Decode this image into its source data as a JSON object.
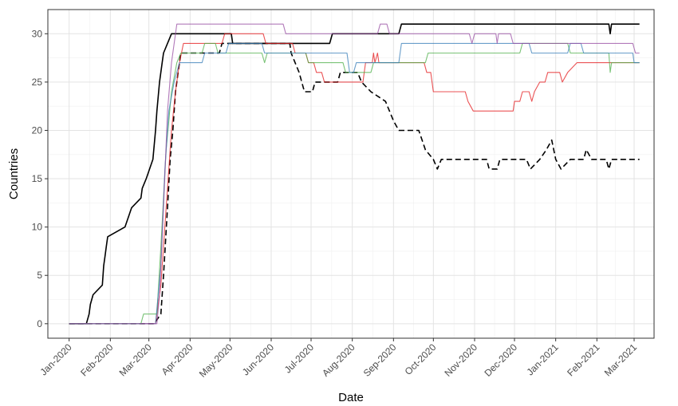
{
  "chart_data": {
    "type": "line",
    "title": "",
    "xlabel": "Date",
    "ylabel": "Countries",
    "x_ticks": [
      "Jan-2020",
      "Feb-2020",
      "Mar-2020",
      "Apr-2020",
      "May-2020",
      "Jun-2020",
      "Jul-2020",
      "Aug-2020",
      "Sep-2020",
      "Oct-2020",
      "Nov-2020",
      "Dec-2020",
      "Jan-2021",
      "Feb-2021",
      "Mar-2021"
    ],
    "xlim": [
      "2019-12-16",
      "2021-03-16"
    ],
    "ylim": [
      -1.5,
      32.5
    ],
    "y_ticks": [
      0,
      5,
      10,
      15,
      20,
      25,
      30
    ],
    "grid": true,
    "legend": "none",
    "series": [
      {
        "color": "#000000",
        "style": "solid",
        "points": [
          [
            "2020-01-01",
            0
          ],
          [
            "2020-01-14",
            0
          ],
          [
            "2020-01-16",
            1
          ],
          [
            "2020-01-17",
            2
          ],
          [
            "2020-01-19",
            3
          ],
          [
            "2020-01-26",
            4
          ],
          [
            "2020-01-27",
            6
          ],
          [
            "2020-01-28",
            7
          ],
          [
            "2020-01-29",
            8
          ],
          [
            "2020-01-30",
            9
          ],
          [
            "2020-02-12",
            10
          ],
          [
            "2020-02-17",
            12
          ],
          [
            "2020-02-24",
            13
          ],
          [
            "2020-02-25",
            14
          ],
          [
            "2020-02-28",
            15
          ],
          [
            "2020-03-04",
            17
          ],
          [
            "2020-03-06",
            20
          ],
          [
            "2020-03-07",
            22
          ],
          [
            "2020-03-09",
            25
          ],
          [
            "2020-03-11",
            27
          ],
          [
            "2020-03-12",
            28
          ],
          [
            "2020-03-15",
            29
          ],
          [
            "2020-03-18",
            30
          ],
          [
            "2020-05-02",
            30
          ],
          [
            "2020-05-03",
            29
          ],
          [
            "2020-07-15",
            29
          ],
          [
            "2020-07-17",
            30
          ],
          [
            "2020-09-05",
            30
          ],
          [
            "2020-09-07",
            31
          ],
          [
            "2021-02-10",
            31
          ],
          [
            "2021-02-11",
            30
          ],
          [
            "2021-02-12",
            31
          ],
          [
            "2021-03-05",
            31
          ]
        ]
      },
      {
        "color": "#000000",
        "style": "dashed",
        "points": [
          [
            "2020-01-01",
            0
          ],
          [
            "2020-03-05",
            0
          ],
          [
            "2020-03-10",
            1
          ],
          [
            "2020-03-12",
            5
          ],
          [
            "2020-03-15",
            12
          ],
          [
            "2020-03-17",
            17
          ],
          [
            "2020-03-19",
            20
          ],
          [
            "2020-03-21",
            24
          ],
          [
            "2020-03-25",
            28
          ],
          [
            "2020-04-23",
            28
          ],
          [
            "2020-04-25",
            29
          ],
          [
            "2020-06-15",
            29
          ],
          [
            "2020-06-16",
            28
          ],
          [
            "2020-06-22",
            26
          ],
          [
            "2020-06-24",
            25
          ],
          [
            "2020-06-26",
            24
          ],
          [
            "2020-07-02",
            24
          ],
          [
            "2020-07-04",
            25
          ],
          [
            "2020-07-21",
            25
          ],
          [
            "2020-07-23",
            26
          ],
          [
            "2020-08-05",
            26
          ],
          [
            "2020-08-08",
            25
          ],
          [
            "2020-08-15",
            24
          ],
          [
            "2020-08-26",
            23
          ],
          [
            "2020-09-01",
            21
          ],
          [
            "2020-09-05",
            20
          ],
          [
            "2020-09-20",
            20
          ],
          [
            "2020-09-25",
            18
          ],
          [
            "2020-10-01",
            17
          ],
          [
            "2020-10-04",
            16
          ],
          [
            "2020-10-07",
            17
          ],
          [
            "2020-11-10",
            17
          ],
          [
            "2020-11-12",
            16
          ],
          [
            "2020-11-18",
            16
          ],
          [
            "2020-11-20",
            17
          ],
          [
            "2020-12-10",
            17
          ],
          [
            "2020-12-13",
            16
          ],
          [
            "2020-12-20",
            17
          ],
          [
            "2020-12-25",
            18
          ],
          [
            "2020-12-29",
            19
          ],
          [
            "2021-01-01",
            17
          ],
          [
            "2021-01-05",
            16
          ],
          [
            "2021-01-12",
            17
          ],
          [
            "2021-01-22",
            17
          ],
          [
            "2021-01-24",
            18
          ],
          [
            "2021-01-28",
            17
          ],
          [
            "2021-02-08",
            17
          ],
          [
            "2021-02-10",
            16
          ],
          [
            "2021-02-12",
            17
          ],
          [
            "2021-03-05",
            17
          ]
        ]
      },
      {
        "color": "#e41a1c",
        "style": "solid",
        "points": [
          [
            "2020-01-01",
            0
          ],
          [
            "2020-03-06",
            0
          ],
          [
            "2020-03-10",
            4
          ],
          [
            "2020-03-14",
            12
          ],
          [
            "2020-03-18",
            20
          ],
          [
            "2020-03-21",
            24
          ],
          [
            "2020-03-24",
            27
          ],
          [
            "2020-03-27",
            29
          ],
          [
            "2020-04-25",
            29
          ],
          [
            "2020-04-27",
            30
          ],
          [
            "2020-05-26",
            30
          ],
          [
            "2020-05-28",
            29
          ],
          [
            "2020-06-17",
            29
          ],
          [
            "2020-06-19",
            28
          ],
          [
            "2020-06-27",
            28
          ],
          [
            "2020-06-29",
            27
          ],
          [
            "2020-07-03",
            27
          ],
          [
            "2020-07-05",
            26
          ],
          [
            "2020-07-09",
            26
          ],
          [
            "2020-07-11",
            25
          ],
          [
            "2020-08-09",
            25
          ],
          [
            "2020-08-11",
            27
          ],
          [
            "2020-08-16",
            27
          ],
          [
            "2020-08-17",
            28
          ],
          [
            "2020-08-18",
            27
          ],
          [
            "2020-08-20",
            28
          ],
          [
            "2020-08-21",
            27
          ],
          [
            "2020-09-24",
            27
          ],
          [
            "2020-09-26",
            26
          ],
          [
            "2020-09-29",
            26
          ],
          [
            "2020-10-01",
            24
          ],
          [
            "2020-10-25",
            24
          ],
          [
            "2020-10-27",
            23
          ],
          [
            "2020-10-31",
            22
          ],
          [
            "2020-11-30",
            22
          ],
          [
            "2020-12-01",
            23
          ],
          [
            "2020-12-05",
            23
          ],
          [
            "2020-12-07",
            24
          ],
          [
            "2020-12-12",
            24
          ],
          [
            "2020-12-14",
            23
          ],
          [
            "2020-12-16",
            24
          ],
          [
            "2020-12-20",
            25
          ],
          [
            "2020-12-24",
            25
          ],
          [
            "2020-12-26",
            26
          ],
          [
            "2021-01-04",
            26
          ],
          [
            "2021-01-06",
            25
          ],
          [
            "2021-01-10",
            26
          ],
          [
            "2021-01-17",
            27
          ],
          [
            "2021-03-05",
            27
          ]
        ]
      },
      {
        "color": "#4daf4a",
        "style": "solid",
        "points": [
          [
            "2020-01-01",
            0
          ],
          [
            "2020-02-24",
            0
          ],
          [
            "2020-02-26",
            1
          ],
          [
            "2020-03-07",
            1
          ],
          [
            "2020-03-10",
            8
          ],
          [
            "2020-03-14",
            18
          ],
          [
            "2020-03-18",
            24
          ],
          [
            "2020-03-22",
            27
          ],
          [
            "2020-03-25",
            28
          ],
          [
            "2020-04-10",
            28
          ],
          [
            "2020-04-12",
            29
          ],
          [
            "2020-04-20",
            29
          ],
          [
            "2020-04-22",
            28
          ],
          [
            "2020-05-25",
            28
          ],
          [
            "2020-05-27",
            27
          ],
          [
            "2020-05-29",
            28
          ],
          [
            "2020-06-27",
            28
          ],
          [
            "2020-06-29",
            27
          ],
          [
            "2020-07-25",
            27
          ],
          [
            "2020-07-27",
            26
          ],
          [
            "2020-08-15",
            26
          ],
          [
            "2020-08-17",
            27
          ],
          [
            "2020-09-25",
            27
          ],
          [
            "2020-09-27",
            28
          ],
          [
            "2020-12-05",
            28
          ],
          [
            "2020-12-07",
            29
          ],
          [
            "2021-01-10",
            29
          ],
          [
            "2021-01-12",
            28
          ],
          [
            "2021-02-10",
            28
          ],
          [
            "2021-02-11",
            26
          ],
          [
            "2021-02-12",
            27
          ],
          [
            "2021-03-05",
            27
          ]
        ]
      },
      {
        "color": "#377eb8",
        "style": "solid",
        "points": [
          [
            "2020-01-01",
            0
          ],
          [
            "2020-03-06",
            0
          ],
          [
            "2020-03-10",
            6
          ],
          [
            "2020-03-13",
            16
          ],
          [
            "2020-03-16",
            22
          ],
          [
            "2020-03-20",
            25
          ],
          [
            "2020-03-24",
            27
          ],
          [
            "2020-04-10",
            27
          ],
          [
            "2020-04-12",
            28
          ],
          [
            "2020-04-28",
            28
          ],
          [
            "2020-04-30",
            29
          ],
          [
            "2020-05-25",
            29
          ],
          [
            "2020-05-27",
            28
          ],
          [
            "2020-07-28",
            28
          ],
          [
            "2020-07-30",
            26
          ],
          [
            "2020-08-02",
            26
          ],
          [
            "2020-08-04",
            27
          ],
          [
            "2020-09-05",
            27
          ],
          [
            "2020-09-07",
            29
          ],
          [
            "2020-12-12",
            29
          ],
          [
            "2020-12-14",
            28
          ],
          [
            "2021-01-10",
            28
          ],
          [
            "2021-01-12",
            29
          ],
          [
            "2021-01-20",
            29
          ],
          [
            "2021-01-22",
            28
          ],
          [
            "2021-02-28",
            28
          ],
          [
            "2021-03-01",
            27
          ],
          [
            "2021-03-05",
            27
          ]
        ]
      },
      {
        "color": "#984ea3",
        "style": "solid",
        "points": [
          [
            "2020-01-01",
            0
          ],
          [
            "2020-03-07",
            0
          ],
          [
            "2020-03-09",
            3
          ],
          [
            "2020-03-12",
            12
          ],
          [
            "2020-03-15",
            22
          ],
          [
            "2020-03-18",
            27
          ],
          [
            "2020-03-22",
            31
          ],
          [
            "2020-06-10",
            31
          ],
          [
            "2020-06-12",
            30
          ],
          [
            "2020-08-20",
            30
          ],
          [
            "2020-08-22",
            31
          ],
          [
            "2020-08-27",
            31
          ],
          [
            "2020-08-29",
            30
          ],
          [
            "2020-10-28",
            30
          ],
          [
            "2020-10-30",
            29
          ],
          [
            "2020-11-01",
            30
          ],
          [
            "2020-11-17",
            30
          ],
          [
            "2020-11-18",
            29
          ],
          [
            "2020-11-19",
            30
          ],
          [
            "2020-11-28",
            30
          ],
          [
            "2020-11-30",
            29
          ],
          [
            "2021-02-28",
            29
          ],
          [
            "2021-03-02",
            28
          ],
          [
            "2021-03-05",
            28
          ]
        ]
      }
    ]
  }
}
